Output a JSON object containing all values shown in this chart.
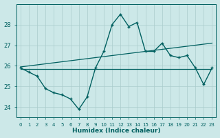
{
  "xlabel": "Humidex (Indice chaleur)",
  "background_color": "#cce8e8",
  "grid_color": "#aacccc",
  "line_color": "#006060",
  "x_values": [
    0,
    1,
    2,
    3,
    4,
    5,
    6,
    7,
    8,
    9,
    10,
    11,
    12,
    13,
    14,
    15,
    16,
    17,
    18,
    19,
    20,
    21,
    22,
    23
  ],
  "y_main": [
    25.9,
    25.7,
    25.5,
    24.9,
    24.7,
    24.6,
    24.4,
    23.9,
    24.5,
    25.9,
    26.7,
    28.0,
    28.5,
    27.9,
    28.1,
    26.7,
    26.7,
    27.1,
    26.5,
    26.4,
    26.5,
    25.9,
    25.1,
    25.9
  ],
  "ylim": [
    23.5,
    29.0
  ],
  "yticks": [
    24,
    25,
    26,
    27,
    28
  ],
  "xlim": [
    -0.5,
    23.5
  ],
  "xticks": [
    0,
    1,
    2,
    3,
    4,
    5,
    6,
    7,
    8,
    9,
    10,
    11,
    12,
    13,
    14,
    15,
    16,
    17,
    18,
    19,
    20,
    21,
    22,
    23
  ],
  "figsize": [
    3.2,
    2.0
  ],
  "dpi": 100
}
